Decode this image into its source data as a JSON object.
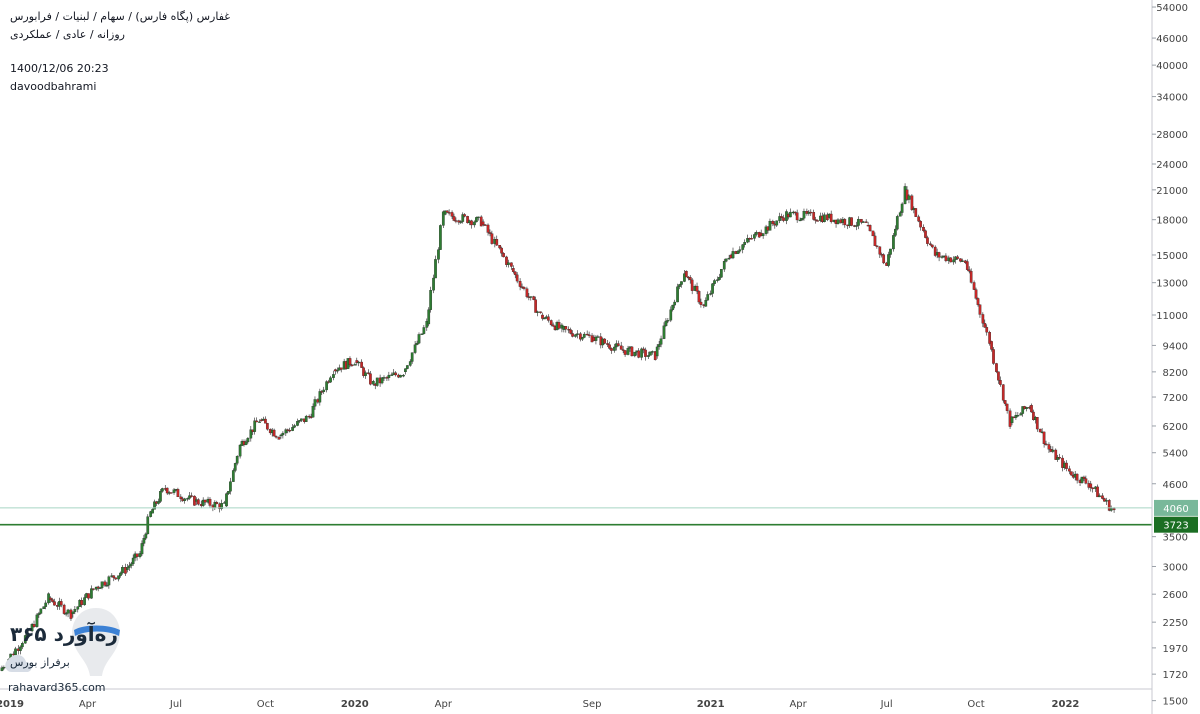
{
  "header": {
    "title_line": "غفارس (پگاه فارس) / سهام / لبنیات / فرابورس",
    "sub_line": "روزانه / عادی / عملکردی",
    "datetime": "1400/12/06 20:23",
    "author": "davoodbahrami"
  },
  "logo": {
    "name": "ره‌آورد ۳۶۵",
    "tagline": "برفراز بورس",
    "url": "rahavard365.com"
  },
  "colors": {
    "up": "#2e7d32",
    "down": "#c62828",
    "support_line": "#2e7d32",
    "last_price_line": "#a8d5c4",
    "axis_text": "#444444"
  },
  "chart_data": {
    "type": "candlestick",
    "y_scale": "log",
    "ylim": [
      1400,
      56000
    ],
    "y_ticks": [
      1500,
      1720,
      1970,
      2250,
      2600,
      3000,
      3500,
      4600,
      5400,
      6200,
      7200,
      8200,
      9400,
      11000,
      13000,
      15000,
      18000,
      21000,
      24000,
      28000,
      34000,
      40000,
      46000,
      54000
    ],
    "x_ticks": [
      "2019",
      "Apr",
      "Jul",
      "Oct",
      "2020",
      "Apr",
      "Sep",
      "2021",
      "Apr",
      "Jul",
      "Oct",
      "2022"
    ],
    "x_range": [
      "2019-01",
      "2022-02"
    ],
    "horizontal_lines": [
      {
        "value": 3723,
        "label": "3723",
        "style": "support"
      },
      {
        "value": 4060,
        "label": "4060",
        "style": "last_price"
      }
    ],
    "price_path": [
      {
        "date": "2019-01-01",
        "close": 1750
      },
      {
        "date": "2019-02-01",
        "close": 2150
      },
      {
        "date": "2019-02-20",
        "close": 2550
      },
      {
        "date": "2019-03-15",
        "close": 2350
      },
      {
        "date": "2019-04-10",
        "close": 2700
      },
      {
        "date": "2019-05-10",
        "close": 2950
      },
      {
        "date": "2019-05-25",
        "close": 3200
      },
      {
        "date": "2019-06-05",
        "close": 3950
      },
      {
        "date": "2019-06-20",
        "close": 4500
      },
      {
        "date": "2019-07-20",
        "close": 4200
      },
      {
        "date": "2019-08-20",
        "close": 4100
      },
      {
        "date": "2019-09-05",
        "close": 5600
      },
      {
        "date": "2019-09-25",
        "close": 6400
      },
      {
        "date": "2019-10-15",
        "close": 5900
      },
      {
        "date": "2019-11-15",
        "close": 6500
      },
      {
        "date": "2019-12-10",
        "close": 8300
      },
      {
        "date": "2020-01-01",
        "close": 8700
      },
      {
        "date": "2020-01-20",
        "close": 7700
      },
      {
        "date": "2020-02-20",
        "close": 8200
      },
      {
        "date": "2020-03-15",
        "close": 10500
      },
      {
        "date": "2020-04-01",
        "close": 18500
      },
      {
        "date": "2020-05-10",
        "close": 17800
      },
      {
        "date": "2020-06-10",
        "close": 14000
      },
      {
        "date": "2020-07-10",
        "close": 11000
      },
      {
        "date": "2020-08-01",
        "close": 10200
      },
      {
        "date": "2020-09-01",
        "close": 9800
      },
      {
        "date": "2020-10-01",
        "close": 9200
      },
      {
        "date": "2020-11-05",
        "close": 8900
      },
      {
        "date": "2020-12-05",
        "close": 13800
      },
      {
        "date": "2020-12-25",
        "close": 11500
      },
      {
        "date": "2021-01-20",
        "close": 15000
      },
      {
        "date": "2021-02-20",
        "close": 16800
      },
      {
        "date": "2021-03-20",
        "close": 18500
      },
      {
        "date": "2021-05-01",
        "close": 18200
      },
      {
        "date": "2021-06-10",
        "close": 17500
      },
      {
        "date": "2021-07-01",
        "close": 14200
      },
      {
        "date": "2021-07-20",
        "close": 21000
      },
      {
        "date": "2021-08-20",
        "close": 15000
      },
      {
        "date": "2021-09-20",
        "close": 14500
      },
      {
        "date": "2021-10-15",
        "close": 9600
      },
      {
        "date": "2021-11-05",
        "close": 6300
      },
      {
        "date": "2021-11-25",
        "close": 6900
      },
      {
        "date": "2021-12-15",
        "close": 5500
      },
      {
        "date": "2022-01-05",
        "close": 4900
      },
      {
        "date": "2022-01-25",
        "close": 4600
      },
      {
        "date": "2022-02-20",
        "close": 4000
      }
    ]
  }
}
